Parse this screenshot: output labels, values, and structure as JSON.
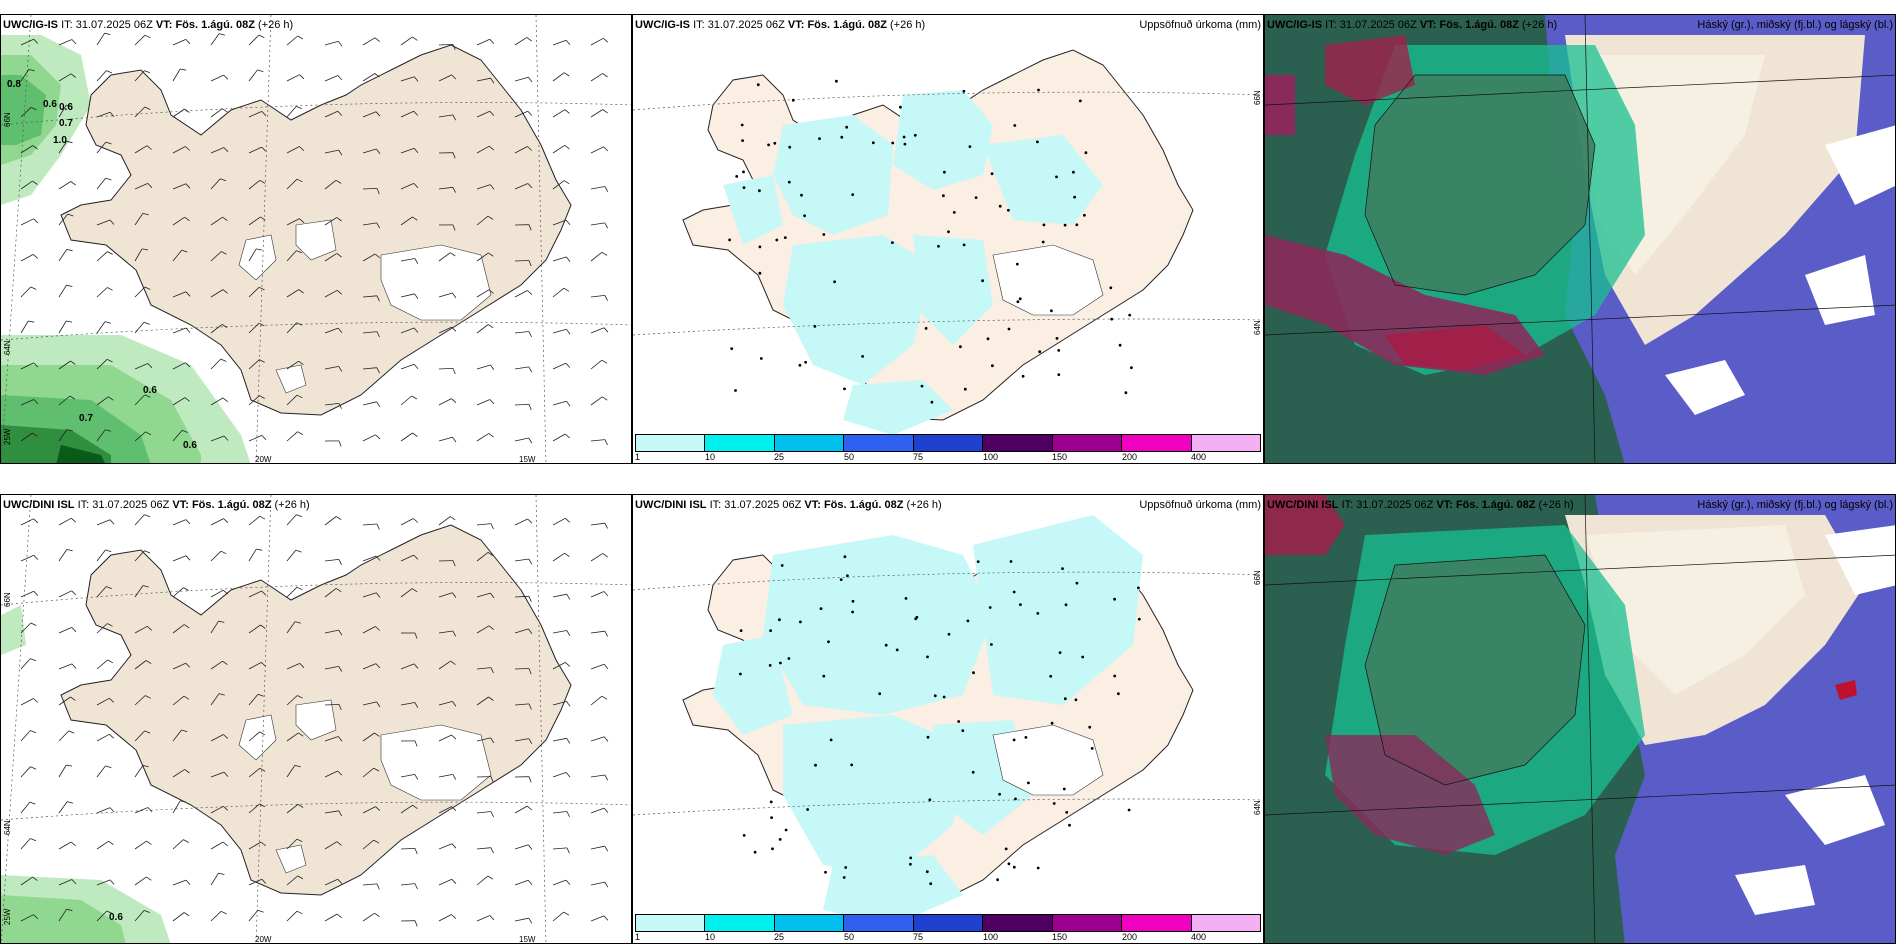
{
  "rows": [
    {
      "model": "UWC/IG-IS",
      "wind": {
        "model": "UWC/IG-IS",
        "it_label": "IT:",
        "it_value": "31.07.2025 06Z",
        "vt_label": "VT:",
        "vt_value": "Fös. 1.ágú. 08Z",
        "lead": "(+26 h)",
        "values": [
          "0.8",
          "0.6",
          "0.6",
          "0.7",
          "1.0",
          "0.6",
          "0.7",
          "0.6"
        ],
        "lat_labels": [
          "66N",
          "64N",
          "25W"
        ],
        "lon_labels": [
          "20W",
          "15W"
        ]
      },
      "precip": {
        "model": "UWC/IG-IS",
        "it_label": "IT:",
        "it_value": "31.07.2025 06Z",
        "vt_label": "VT:",
        "vt_value": "Fös. 1.ágú. 08Z",
        "lead": "(+26 h)",
        "right_title": "Uppsöfnuð úrkoma (mm)",
        "lat_labels": [
          "66N",
          "64N"
        ]
      },
      "cloud": {
        "model": "UWC/IG-IS",
        "it_label": "IT:",
        "it_value": "31.07.2025 06Z",
        "vt_label": "VT:",
        "vt_value": "Fös. 1.ágú. 08Z",
        "lead": "(+26 h)",
        "right_title": "Háský (gr.), miðský (fj.bl.) og lágský (bl.)"
      }
    },
    {
      "model": "UWC/DINI ISL",
      "wind": {
        "model": "UWC/DINI ISL",
        "it_label": "IT:",
        "it_value": "31.07.2025 06Z",
        "vt_label": "VT:",
        "vt_value": "Fös. 1.ágú. 08Z",
        "lead": "(+26 h)",
        "values": [
          "0.6"
        ],
        "lat_labels": [
          "66N",
          "64N",
          "25W"
        ],
        "lon_labels": [
          "20W",
          "15W"
        ]
      },
      "precip": {
        "model": "UWC/DINI ISL",
        "it_label": "IT:",
        "it_value": "31.07.2025 06Z",
        "vt_label": "VT:",
        "vt_value": "Fös. 1.ágú. 08Z",
        "lead": "(+26 h)",
        "right_title": "Uppsöfnuð úrkoma (mm)",
        "lat_labels": [
          "66N",
          "64N"
        ]
      },
      "cloud": {
        "model": "UWC/DINI ISL",
        "it_label": "IT:",
        "it_value": "31.07.2025 06Z",
        "vt_label": "VT:",
        "vt_value": "Fös. 1.ágú. 08Z",
        "lead": "(+26 h)",
        "right_title": "Háský (gr.), miðský (fj.bl.) og lágský (bl.)"
      }
    }
  ],
  "precip_colorbar": {
    "ticks": [
      "1",
      "10",
      "25",
      "50",
      "75",
      "100",
      "150",
      "200",
      "400"
    ],
    "colors": [
      "#c6f8f8",
      "#00f0f0",
      "#00c0f0",
      "#3060f0",
      "#2040d0",
      "#500060",
      "#a00090",
      "#f000c0",
      "#f4b0f4"
    ]
  },
  "colors": {
    "land": "#f0e4d4",
    "ocean": "#ffffff",
    "precip_light": "#c6f8f8",
    "low_cloud": "#2b5f4f",
    "high_cloud": "#5a5cc8",
    "mid_cloud": "#18c090",
    "heavy": "#8a2a5a",
    "green_shade": "#90d890"
  }
}
